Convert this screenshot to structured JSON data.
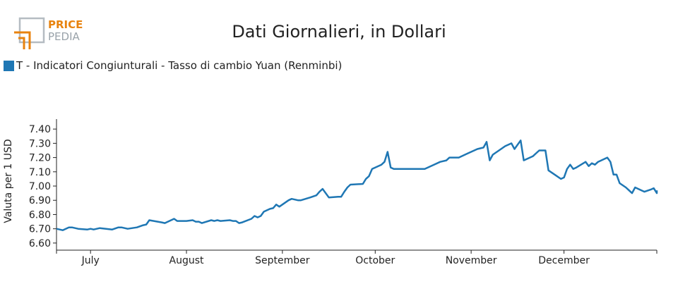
{
  "logo": {
    "line1": "PRICE",
    "line2": "PEDIA"
  },
  "colors": {
    "series": "#1f77b4",
    "logo_orange": "#e8830f",
    "logo_grey": "#9aa3aa"
  },
  "chart_data": {
    "type": "line",
    "title": "Dati Giornalieri, in Dollari",
    "ylabel": "Valuta per 1 USD",
    "xlabel": "",
    "ylim": [
      6.55,
      7.47
    ],
    "yticks": [
      6.6,
      6.7,
      6.8,
      6.9,
      7.0,
      7.1,
      7.2,
      7.3,
      7.4
    ],
    "ytick_labels": [
      "6.60",
      "6.70",
      "6.80",
      "6.90",
      "7.00",
      "7.10",
      "7.20",
      "7.30",
      "7.40"
    ],
    "xlim": [
      "2022-06-20",
      "2022-12-31"
    ],
    "xticks": [
      "2022-07-01",
      "2022-08-01",
      "2022-09-01",
      "2022-10-01",
      "2022-11-01",
      "2022-12-01"
    ],
    "xtick_labels": [
      "July",
      "August",
      "September",
      "October",
      "November",
      "December"
    ],
    "legend": "top-left",
    "grid": false,
    "series": [
      {
        "name": "T - Indicatori Congiunturali - Tasso di cambio Yuan (Renminbi)",
        "color": "#1f77b4",
        "points": [
          [
            "2022-06-20",
            6.7
          ],
          [
            "2022-06-22",
            6.69
          ],
          [
            "2022-06-24",
            6.71
          ],
          [
            "2022-06-25",
            6.71
          ],
          [
            "2022-06-27",
            6.7
          ],
          [
            "2022-06-30",
            6.695
          ],
          [
            "2022-07-01",
            6.7
          ],
          [
            "2022-07-02",
            6.695
          ],
          [
            "2022-07-04",
            6.705
          ],
          [
            "2022-07-06",
            6.7
          ],
          [
            "2022-07-08",
            6.695
          ],
          [
            "2022-07-10",
            6.71
          ],
          [
            "2022-07-11",
            6.71
          ],
          [
            "2022-07-13",
            6.7
          ],
          [
            "2022-07-16",
            6.71
          ],
          [
            "2022-07-18",
            6.725
          ],
          [
            "2022-07-19",
            6.73
          ],
          [
            "2022-07-20",
            6.76
          ],
          [
            "2022-07-24",
            6.745
          ],
          [
            "2022-07-25",
            6.74
          ],
          [
            "2022-07-28",
            6.77
          ],
          [
            "2022-07-29",
            6.755
          ],
          [
            "2022-08-01",
            6.755
          ],
          [
            "2022-08-03",
            6.76
          ],
          [
            "2022-08-04",
            6.75
          ],
          [
            "2022-08-05",
            6.75
          ],
          [
            "2022-08-06",
            6.74
          ],
          [
            "2022-08-09",
            6.76
          ],
          [
            "2022-08-10",
            6.755
          ],
          [
            "2022-08-11",
            6.76
          ],
          [
            "2022-08-12",
            6.755
          ],
          [
            "2022-08-15",
            6.76
          ],
          [
            "2022-08-16",
            6.755
          ],
          [
            "2022-08-17",
            6.755
          ],
          [
            "2022-08-18",
            6.74
          ],
          [
            "2022-08-19",
            6.745
          ],
          [
            "2022-08-22",
            6.77
          ],
          [
            "2022-08-23",
            6.79
          ],
          [
            "2022-08-24",
            6.78
          ],
          [
            "2022-08-25",
            6.79
          ],
          [
            "2022-08-26",
            6.82
          ],
          [
            "2022-08-28",
            6.84
          ],
          [
            "2022-08-29",
            6.845
          ],
          [
            "2022-08-30",
            6.87
          ],
          [
            "2022-08-31",
            6.855
          ],
          [
            "2022-09-01",
            6.87
          ],
          [
            "2022-09-03",
            6.9
          ],
          [
            "2022-09-04",
            6.91
          ],
          [
            "2022-09-05",
            6.905
          ],
          [
            "2022-09-06",
            6.9
          ],
          [
            "2022-09-07",
            6.9
          ],
          [
            "2022-09-10",
            6.92
          ],
          [
            "2022-09-12",
            6.935
          ],
          [
            "2022-09-13",
            6.96
          ],
          [
            "2022-09-14",
            6.98
          ],
          [
            "2022-09-16",
            6.92
          ],
          [
            "2022-09-19",
            6.925
          ],
          [
            "2022-09-20",
            6.925
          ],
          [
            "2022-09-21",
            6.96
          ],
          [
            "2022-09-22",
            6.99
          ],
          [
            "2022-09-23",
            7.01
          ],
          [
            "2022-09-27",
            7.015
          ],
          [
            "2022-09-28",
            7.05
          ],
          [
            "2022-09-29",
            7.07
          ],
          [
            "2022-09-30",
            7.12
          ],
          [
            "2022-10-03",
            7.15
          ],
          [
            "2022-10-04",
            7.17
          ],
          [
            "2022-10-05",
            7.24
          ],
          [
            "2022-10-06",
            7.13
          ],
          [
            "2022-10-07",
            7.12
          ],
          [
            "2022-10-12",
            7.12
          ],
          [
            "2022-10-17",
            7.12
          ],
          [
            "2022-10-20",
            7.15
          ],
          [
            "2022-10-22",
            7.17
          ],
          [
            "2022-10-24",
            7.18
          ],
          [
            "2022-10-25",
            7.2
          ],
          [
            "2022-10-28",
            7.2
          ],
          [
            "2022-10-30",
            7.22
          ],
          [
            "2022-10-31",
            7.23
          ],
          [
            "2022-11-01",
            7.24
          ],
          [
            "2022-11-02",
            7.25
          ],
          [
            "2022-11-03",
            7.26
          ],
          [
            "2022-11-05",
            7.27
          ],
          [
            "2022-11-06",
            7.31
          ],
          [
            "2022-11-07",
            7.18
          ],
          [
            "2022-11-08",
            7.22
          ],
          [
            "2022-11-10",
            7.25
          ],
          [
            "2022-11-12",
            7.28
          ],
          [
            "2022-11-14",
            7.3
          ],
          [
            "2022-11-15",
            7.26
          ],
          [
            "2022-11-17",
            7.32
          ],
          [
            "2022-11-18",
            7.18
          ],
          [
            "2022-11-21",
            7.21
          ],
          [
            "2022-11-22",
            7.23
          ],
          [
            "2022-11-23",
            7.25
          ],
          [
            "2022-11-25",
            7.25
          ],
          [
            "2022-11-26",
            7.11
          ],
          [
            "2022-11-28",
            7.08
          ],
          [
            "2022-11-30",
            7.05
          ],
          [
            "2022-12-01",
            7.06
          ],
          [
            "2022-12-02",
            7.12
          ],
          [
            "2022-12-03",
            7.15
          ],
          [
            "2022-12-04",
            7.12
          ],
          [
            "2022-12-05",
            7.13
          ],
          [
            "2022-12-08",
            7.17
          ],
          [
            "2022-12-09",
            7.14
          ],
          [
            "2022-12-10",
            7.16
          ],
          [
            "2022-12-11",
            7.15
          ],
          [
            "2022-12-12",
            7.17
          ],
          [
            "2022-12-15",
            7.2
          ],
          [
            "2022-12-16",
            7.17
          ],
          [
            "2022-12-17",
            7.08
          ],
          [
            "2022-12-18",
            7.08
          ],
          [
            "2022-12-19",
            7.02
          ],
          [
            "2022-12-21",
            6.99
          ],
          [
            "2022-12-23",
            6.95
          ],
          [
            "2022-12-24",
            6.99
          ],
          [
            "2022-12-26",
            6.97
          ],
          [
            "2022-12-27",
            6.96
          ],
          [
            "2022-12-29",
            6.975
          ],
          [
            "2022-12-30",
            6.985
          ],
          [
            "2022-12-31",
            6.95
          ],
          [
            "2022-12-31",
            6.97
          ]
        ]
      }
    ]
  }
}
